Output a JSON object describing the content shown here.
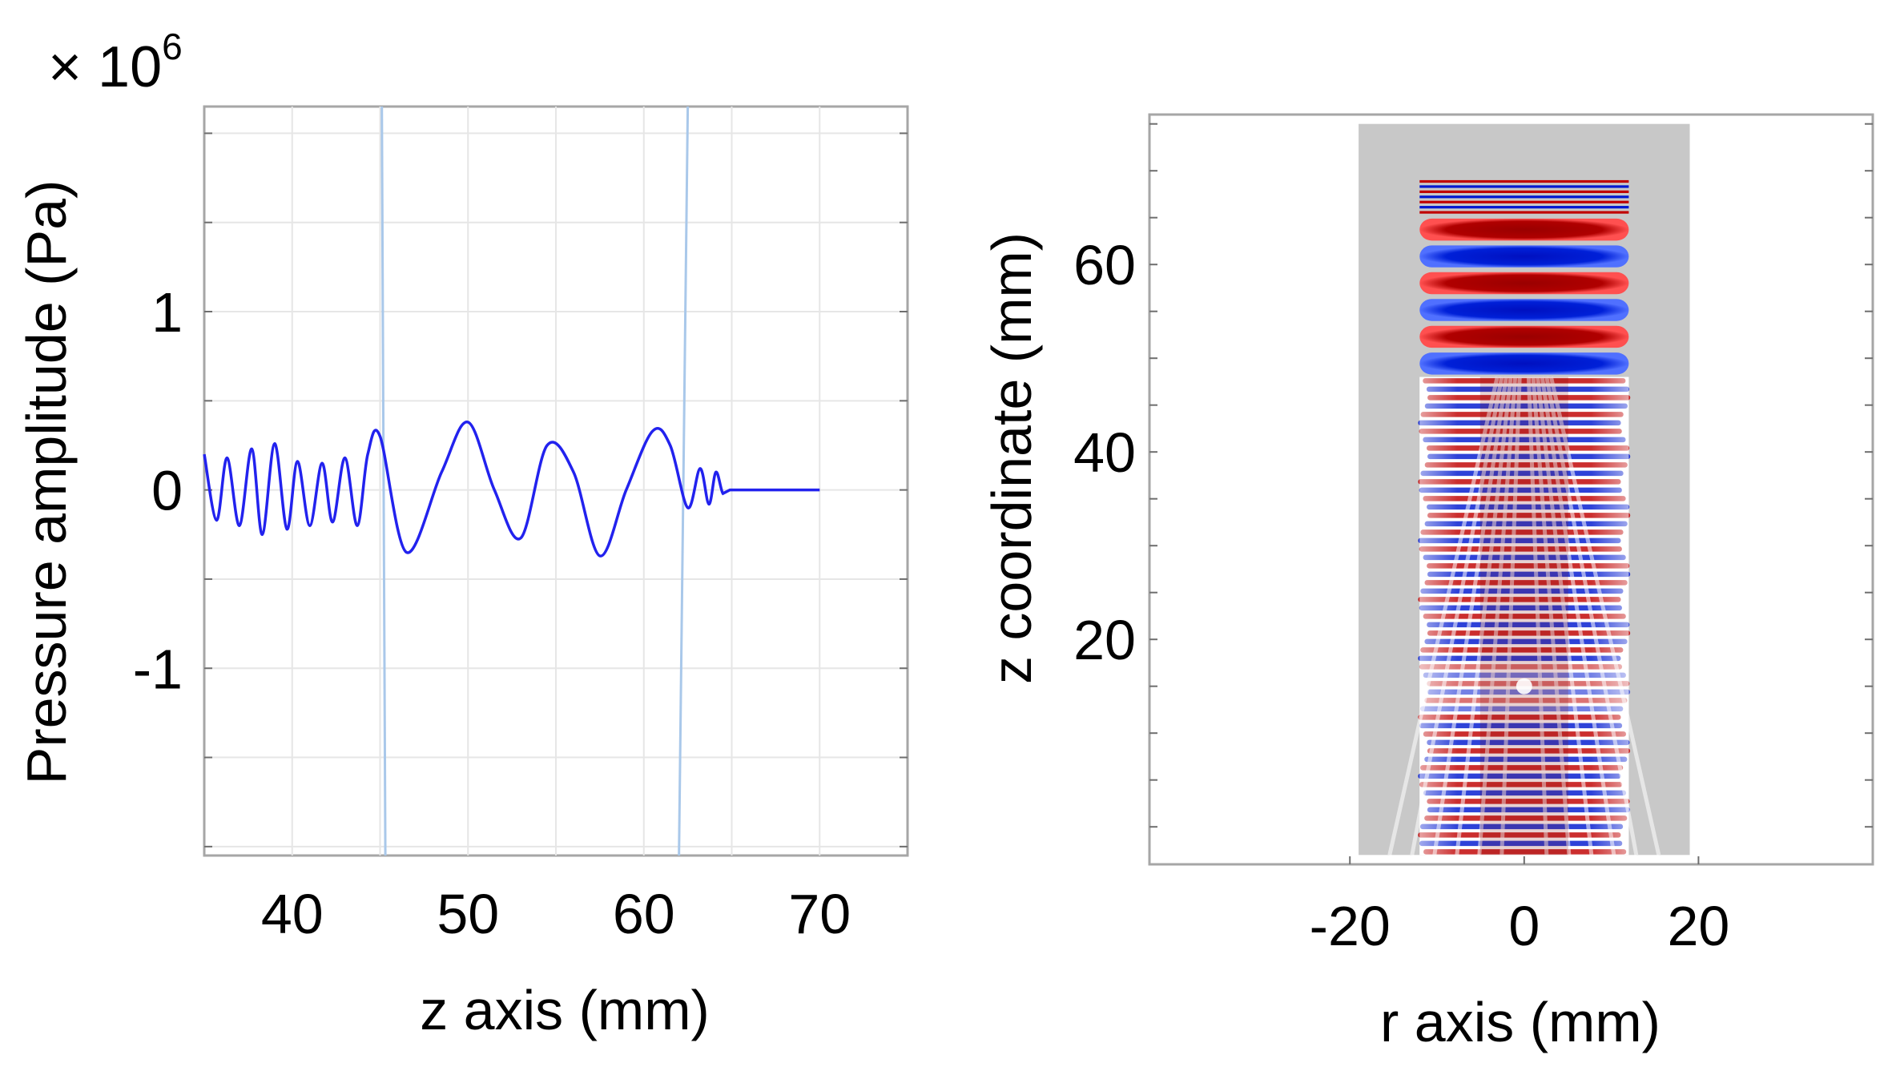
{
  "chart_data": [
    {
      "type": "line",
      "xlabel": "z axis (mm)",
      "ylabel": "Pressure amplitude (Pa)",
      "y_multiplier": "× 10^6",
      "y_multiplier_base": "× 10",
      "y_multiplier_exp": "6",
      "xlim": [
        35,
        75
      ],
      "ylim": [
        -2.05,
        2.15
      ],
      "x_ticks": [
        40,
        50,
        60,
        70
      ],
      "x_tick_labels": [
        "40",
        "50",
        "60",
        "70"
      ],
      "y_ticks": [
        1,
        0,
        -1
      ],
      "y_tick_labels": [
        "1",
        "0",
        "-1"
      ],
      "grid": true,
      "line_color": "#2222ee",
      "marker_color": "#a9c8ea",
      "vertical_markers": [
        {
          "x_top": 45.1,
          "x_bottom": 45.3
        },
        {
          "x_top": 62.5,
          "x_bottom": 62.0
        }
      ],
      "series": [
        {
          "x": [
            35.0,
            35.7,
            36.3,
            37.0,
            37.7,
            38.3,
            39.0,
            39.7,
            40.3,
            41.0,
            41.7,
            42.3,
            43.0,
            43.7,
            44.3,
            45.0,
            46.5,
            48.5,
            50.0,
            51.5,
            53.0,
            54.5,
            56.0,
            57.5,
            59.0,
            60.5,
            61.5,
            62.5,
            63.2,
            63.7,
            64.1,
            64.5,
            64.9,
            70.0
          ],
          "y": [
            0.2,
            -0.17,
            0.18,
            -0.2,
            0.23,
            -0.25,
            0.26,
            -0.22,
            0.16,
            -0.2,
            0.15,
            -0.18,
            0.18,
            -0.2,
            0.2,
            0.3,
            -0.35,
            0.1,
            0.38,
            0.0,
            -0.27,
            0.25,
            0.1,
            -0.37,
            0.0,
            0.33,
            0.25,
            -0.1,
            0.12,
            -0.08,
            0.1,
            -0.02,
            0.0,
            0.0
          ]
        }
      ]
    },
    {
      "type": "heatmap",
      "xlabel": "r axis (mm)",
      "ylabel": "z coordinate (mm)",
      "xlim": [
        -43,
        40
      ],
      "ylim": [
        -4,
        76
      ],
      "x_ticks": [
        -20,
        0,
        20
      ],
      "x_tick_labels": [
        "-20",
        "0",
        "20"
      ],
      "y_ticks": [
        60,
        40,
        20
      ],
      "y_tick_labels": [
        "60",
        "40",
        "20"
      ],
      "domain_r": [
        -19,
        19
      ],
      "domain_z": [
        -3,
        75
      ],
      "wave_r": [
        -12,
        12
      ],
      "wave_z_bottom": -3,
      "wave_z_top": 69,
      "focal_band_z": [
        48,
        69
      ],
      "focus_z": 15,
      "colors": {
        "background_domain": "#c8c8c8",
        "positive": "#c00000",
        "negative": "#0018d0",
        "neutral": "#ffffff"
      }
    }
  ]
}
